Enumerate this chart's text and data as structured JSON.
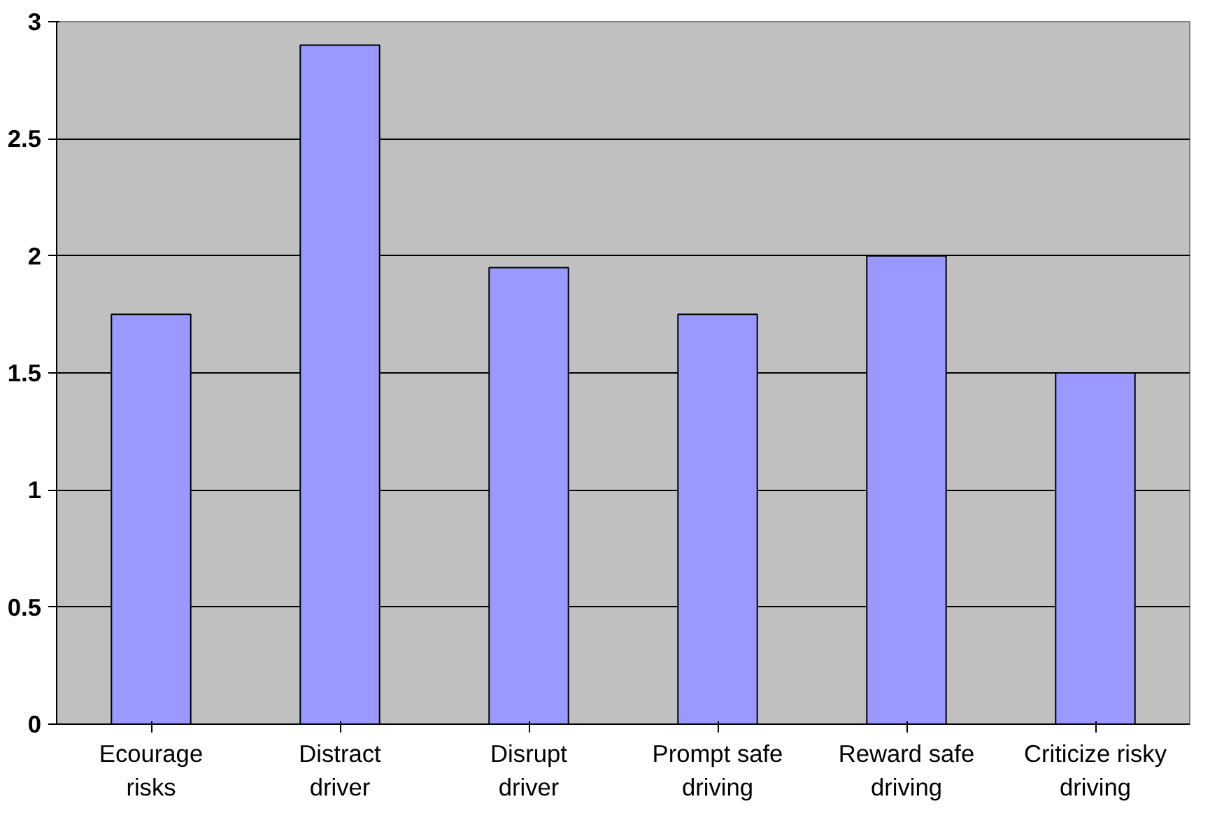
{
  "chart_data": {
    "type": "bar",
    "categories": [
      "Ecourage risks",
      "Distract driver",
      "Disrupt driver",
      "Prompt safe driving",
      "Reward safe driving",
      "Criticize risky driving"
    ],
    "values": [
      1.75,
      2.9,
      1.95,
      1.75,
      2.0,
      1.5
    ],
    "color": "#9999ff",
    "ylim": [
      0,
      3
    ],
    "yticks": [
      0,
      0.5,
      1,
      1.5,
      2,
      2.5,
      3
    ],
    "grid": "y"
  }
}
